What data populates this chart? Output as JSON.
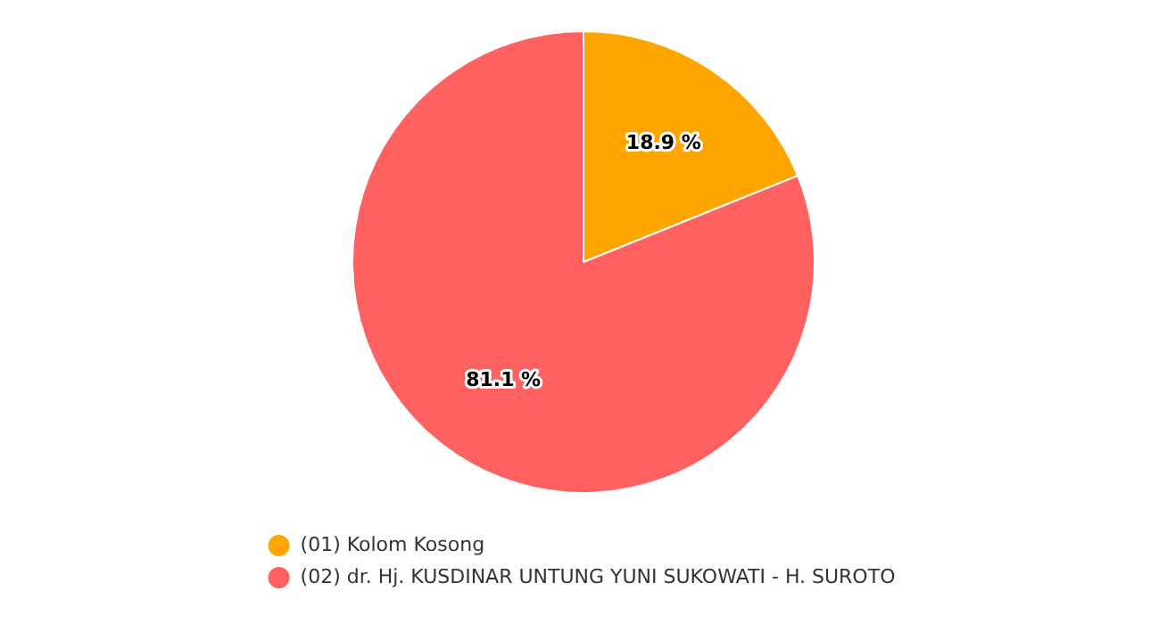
{
  "chart_data": {
    "type": "pie",
    "categories": [
      "(01) Kolom Kosong",
      "(02) dr. Hj. KUSDINAR UNTUNG YUNI SUKOWATI - H. SUROTO"
    ],
    "values": [
      18.9,
      81.1
    ],
    "colors": [
      "#ffa500",
      "#ff6060"
    ],
    "value_labels": [
      "18.9 %",
      "81.1 %"
    ],
    "legend": "bottom"
  }
}
